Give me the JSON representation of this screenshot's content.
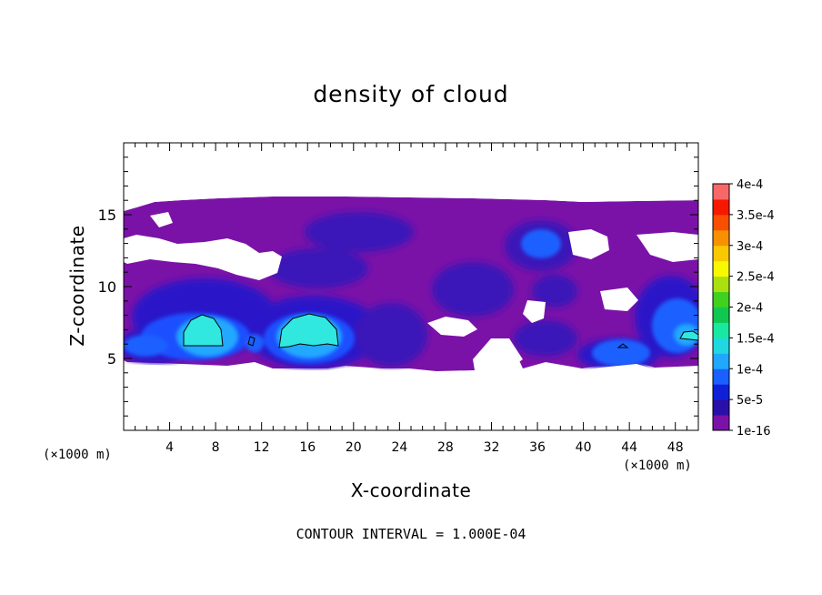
{
  "chart_data": {
    "type": "heatmap",
    "title": "density of cloud",
    "xlabel": "X-coordinate",
    "ylabel": "Z-coordinate",
    "x_unit": "(×1000 m)",
    "x_unit_right": "(×1000 m)",
    "xlim": [
      0,
      50
    ],
    "ylim": [
      0,
      20
    ],
    "x_ticks": [
      4,
      8,
      12,
      16,
      20,
      24,
      28,
      32,
      36,
      40,
      44,
      48
    ],
    "y_ticks": [
      5,
      10,
      15
    ],
    "colorbar": {
      "labels": [
        "1e-16",
        "5e-5",
        "1e-4",
        "1.5e-4",
        "2e-4",
        "2.5e-4",
        "3e-4",
        "3.5e-4",
        "4e-4"
      ],
      "colors": [
        "#7b12a8",
        "#2a10a8",
        "#1020d8",
        "#1a60ff",
        "#20a8ff",
        "#20d8e0",
        "#18e8a0",
        "#10c850",
        "#40d020",
        "#a8e010",
        "#f8f800",
        "#f8c800",
        "#f89000",
        "#f85000",
        "#f81800",
        "#f86868"
      ]
    },
    "contour_interval_note": "CONTOUR INTERVAL = 1.000E-04",
    "regions": [
      {
        "x": [
          0,
          50
        ],
        "z": [
          4.5,
          16
        ],
        "level": 0,
        "note": "background cloud field"
      },
      {
        "x": [
          1,
          9
        ],
        "z": [
          5,
          10
        ],
        "level": 1
      },
      {
        "x": [
          5,
          8
        ],
        "z": [
          6,
          8
        ],
        "level": 3
      },
      {
        "x": [
          13,
          19
        ],
        "z": [
          5,
          9
        ],
        "level": 3
      },
      {
        "x": [
          33,
          38
        ],
        "z": [
          11.5,
          15
        ],
        "level": 2
      },
      {
        "x": [
          40,
          45
        ],
        "z": [
          5,
          7
        ],
        "level": 2
      },
      {
        "x": [
          45,
          50
        ],
        "z": [
          5,
          10
        ],
        "level": 2
      }
    ]
  }
}
